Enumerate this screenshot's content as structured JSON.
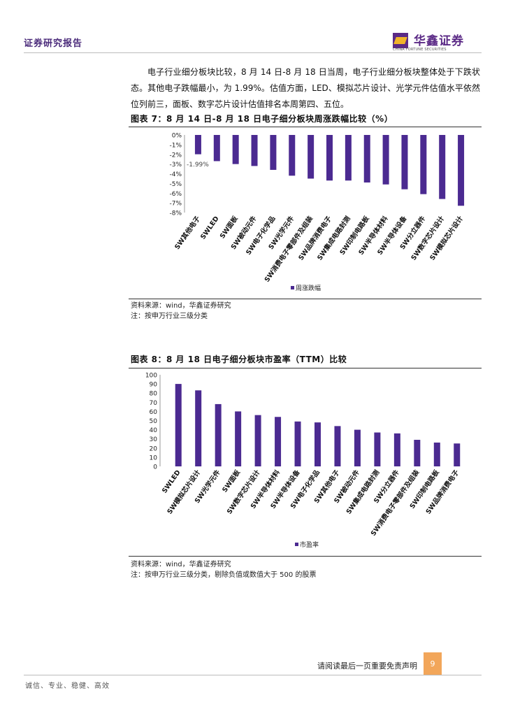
{
  "header": {
    "title": "证券研究报告",
    "logo_cn": "华鑫证券",
    "logo_en": "CHINA FORTUNE SECURITIES"
  },
  "paragraph": "电子行业细分板块比较，8 月 14 日-8 月 18 日当周，电子行业细分板块整体处于下跌状态。其他电子跌幅最小，为 1.99%。估值方面，LED、模拟芯片设计、光学元件估值水平依然位列前三，面板、数字芯片设计估值排名本周第四、五位。",
  "figure7": {
    "title": "图表 7：8 月 14 日-8 月 18 日电子细分板块周涨跌幅比较（%）",
    "source": "资料来源：wind，华鑫证券研究",
    "note": "注：按申万行业三级分类"
  },
  "figure8": {
    "title": "图表 8：8 月 18 日电子细分板块市盈率（TTM）比较",
    "source": "资料来源：wind，华鑫证券研究",
    "note": "注：按申万行业三级分类，剔除负值或数值大于 500 的股票"
  },
  "chart_data": [
    {
      "type": "bar",
      "categories": [
        "SW其他电子",
        "SWLED",
        "SW面板",
        "SW被动元件",
        "SW电子化学品",
        "SW光学元件",
        "SW消费电子零部件及组装",
        "SW品牌消费电子",
        "SW集成电路封测",
        "SW印制电路板",
        "SW半导体材料",
        "SW半导体设备",
        "SW分立器件",
        "SW数字芯片设计",
        "SW模拟芯片设计"
      ],
      "series": [
        {
          "name": "周涨跌幅",
          "values": [
            -1.99,
            -2.7,
            -3.0,
            -3.2,
            -3.6,
            -4.2,
            -4.5,
            -4.7,
            -4.7,
            -4.9,
            -5.1,
            -5.6,
            -6.1,
            -6.6,
            -7.3
          ]
        }
      ],
      "data_labels": [
        "-1.99%"
      ],
      "yticks": [
        "0%",
        "-1%",
        "-2%",
        "-3%",
        "-4%",
        "-5%",
        "-6%",
        "-7%",
        "-8%"
      ],
      "ylim": [
        -8,
        0
      ],
      "color": "#4b2a91",
      "legend": "bottom-center",
      "grid": false
    },
    {
      "type": "bar",
      "categories": [
        "SWLED",
        "SW模拟芯片设计",
        "SW光学元件",
        "SW面板",
        "SW数字芯片设计",
        "SW半导体材料",
        "SW半导体设备",
        "SW电子化学品",
        "SW其他电子",
        "SW被动元件",
        "SW集成电路封测",
        "SW分立器件",
        "SW消费电子零部件及组装",
        "SW印制电路板",
        "SW品牌消费电子"
      ],
      "series": [
        {
          "name": "市盈率",
          "values": [
            90,
            83,
            68,
            60,
            56,
            54,
            49,
            48,
            44,
            40,
            37,
            36,
            29,
            26,
            25
          ]
        }
      ],
      "yticks": [
        "100",
        "90",
        "80",
        "70",
        "60",
        "50",
        "40",
        "30",
        "20",
        "10",
        "0"
      ],
      "ylim": [
        0,
        100
      ],
      "color": "#4b2a91",
      "legend": "bottom-center",
      "grid": false
    }
  ],
  "footer": {
    "left": "诚信、专业、稳健、高效",
    "disclaimer": "请阅读最后一页重要免责声明",
    "page": "9"
  }
}
